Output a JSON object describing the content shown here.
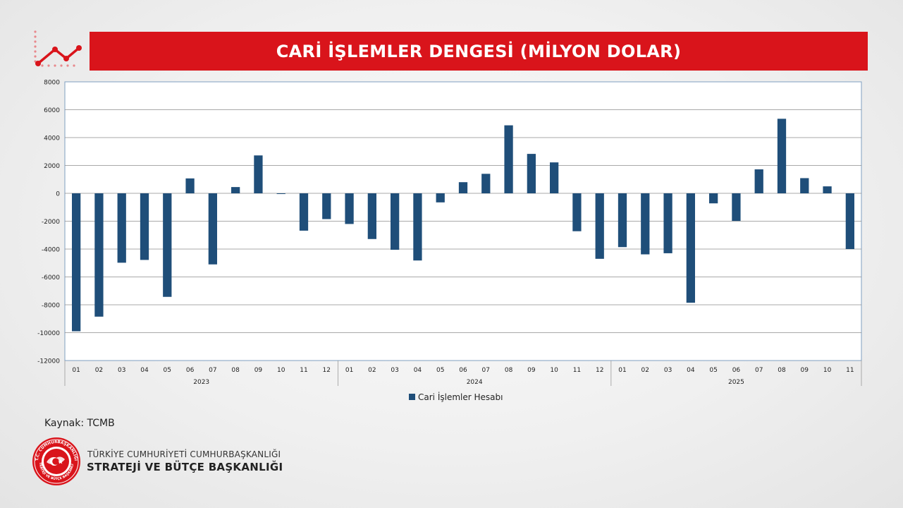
{
  "header": {
    "title": "CARİ İŞLEMLER DENGESİ (MİLYON DOLAR)"
  },
  "colors": {
    "accent": "#d9141b",
    "bar": "#1f4e79",
    "grid": "#8c8c8c"
  },
  "icons": {
    "trend": "line-chart-icon",
    "org": "seal-logo-icon"
  },
  "chart_data": {
    "type": "bar",
    "title": "",
    "xlabel": "",
    "ylabel": "",
    "ylim": [
      -12000,
      8000
    ],
    "yticks": [
      "8000",
      "6000",
      "4000",
      "2000",
      "0",
      "-2000",
      "-4000",
      "-6000",
      "-8000",
      "-10000",
      "-12000"
    ],
    "grid": true,
    "legend_position": "bottom",
    "groups": [
      {
        "label": "2023",
        "categories": [
          "01",
          "02",
          "03",
          "04",
          "05",
          "06",
          "07",
          "08",
          "09",
          "10",
          "11",
          "12"
        ]
      },
      {
        "label": "2024",
        "categories": [
          "01",
          "02",
          "03",
          "04",
          "05",
          "06",
          "07",
          "08",
          "09",
          "10",
          "11",
          "12"
        ]
      },
      {
        "label": "2025",
        "categories": [
          "01",
          "02",
          "03",
          "04",
          "05",
          "06",
          "07",
          "08",
          "09",
          "10",
          "11"
        ]
      }
    ],
    "series": [
      {
        "name": "Cari İşlemler Hesabı",
        "values": [
          -9900,
          -8850,
          -4980,
          -4780,
          -7430,
          1070,
          -5100,
          450,
          2720,
          -50,
          -2680,
          -1850,
          -2200,
          -3280,
          -4050,
          -4820,
          -650,
          800,
          1400,
          4880,
          2830,
          2220,
          -2720,
          -4700,
          -3860,
          -4380,
          -4300,
          -7850,
          -720,
          -1980,
          1720,
          5350,
          1090,
          500,
          -4000
        ]
      }
    ]
  },
  "footer": {
    "source": "Kaynak: TCMB",
    "org_line1": "TÜRKİYE CUMHURİYETİ CUMHURBAŞKANLIĞI",
    "org_line2": "STRATEJİ VE BÜTÇE BAŞKANLIĞI",
    "seal_text_top": "T.C. CUMHURBAŞKANLIĞI",
    "seal_text_bottom": "STRATEJİ VE BÜTÇE BAŞKANLIĞI"
  }
}
